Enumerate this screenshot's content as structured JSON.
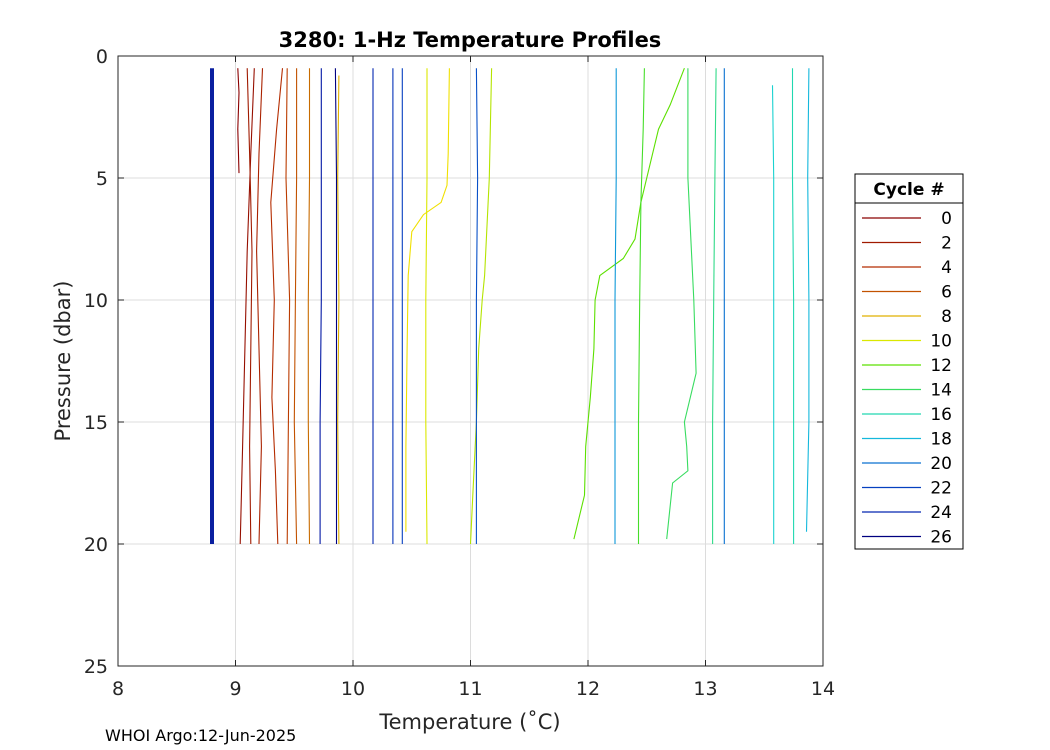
{
  "chart_data": {
    "type": "line",
    "title": "3280: 1-Hz Temperature Profiles",
    "xlabel": "Temperature (˚C)",
    "ylabel": "Pressure (dbar)",
    "xlim": [
      8,
      14
    ],
    "ylim": [
      0,
      25
    ],
    "y_reversed": true,
    "grid": true,
    "x_ticks": [
      8,
      9,
      10,
      11,
      12,
      13,
      14
    ],
    "y_ticks": [
      0,
      5,
      10,
      15,
      20,
      25
    ],
    "legend": {
      "title": "Cycle #",
      "placement": "outside-right"
    },
    "series": [
      {
        "name": "0",
        "color": "#8b0000",
        "points": [
          [
            9.02,
            0.5
          ],
          [
            9.03,
            1.5
          ],
          [
            9.02,
            3
          ],
          [
            9.03,
            4.8
          ]
        ]
      },
      {
        "name": "",
        "color": "#960f00",
        "points": [
          [
            9.16,
            0.5
          ],
          [
            9.13,
            4
          ],
          [
            9.1,
            8
          ],
          [
            9.08,
            12
          ],
          [
            9.06,
            16
          ],
          [
            9.05,
            18
          ],
          [
            9.04,
            20
          ]
        ]
      },
      {
        "name": "2",
        "color": "#a01a00",
        "points": [
          [
            9.1,
            0.5
          ],
          [
            9.12,
            4
          ],
          [
            9.14,
            8
          ],
          [
            9.13,
            12
          ],
          [
            9.12,
            16
          ],
          [
            9.13,
            20
          ]
        ]
      },
      {
        "name": "",
        "color": "#aa2200",
        "points": [
          [
            9.23,
            0.5
          ],
          [
            9.2,
            4
          ],
          [
            9.18,
            8
          ],
          [
            9.2,
            12
          ],
          [
            9.22,
            16
          ],
          [
            9.2,
            20
          ]
        ]
      },
      {
        "name": "4",
        "color": "#b42c00",
        "points": [
          [
            9.4,
            0.5
          ],
          [
            9.35,
            3
          ],
          [
            9.3,
            6
          ],
          [
            9.33,
            10
          ],
          [
            9.31,
            14
          ],
          [
            9.34,
            17
          ],
          [
            9.36,
            20
          ]
        ]
      },
      {
        "name": "",
        "color": "#bb3c00",
        "points": [
          [
            9.44,
            0.5
          ],
          [
            9.43,
            5
          ],
          [
            9.46,
            10
          ],
          [
            9.45,
            15
          ],
          [
            9.44,
            20
          ]
        ]
      },
      {
        "name": "6",
        "color": "#c25200",
        "points": [
          [
            9.52,
            0.5
          ],
          [
            9.52,
            5
          ],
          [
            9.51,
            10
          ],
          [
            9.5,
            15
          ],
          [
            9.52,
            20
          ]
        ]
      },
      {
        "name": "",
        "color": "#c86b00",
        "points": [
          [
            9.63,
            0.5
          ],
          [
            9.63,
            5
          ],
          [
            9.62,
            10
          ],
          [
            9.62,
            15
          ],
          [
            9.63,
            20
          ]
        ]
      },
      {
        "name": "8",
        "color": "#e0b000",
        "points": [
          [
            9.88,
            0.8
          ],
          [
            9.87,
            5
          ],
          [
            9.88,
            10
          ],
          [
            9.87,
            15
          ],
          [
            9.88,
            20
          ]
        ]
      },
      {
        "name": "",
        "color": "#f0e000",
        "points": [
          [
            10.82,
            0.5
          ],
          [
            10.81,
            4
          ],
          [
            10.8,
            5.3
          ],
          [
            10.75,
            6
          ],
          [
            10.6,
            6.5
          ],
          [
            10.5,
            7.2
          ],
          [
            10.47,
            9
          ],
          [
            10.46,
            12
          ],
          [
            10.45,
            16
          ],
          [
            10.45,
            19.5
          ]
        ]
      },
      {
        "name": "10",
        "color": "#dbe800",
        "points": [
          [
            10.63,
            0.5
          ],
          [
            10.63,
            5
          ],
          [
            10.62,
            10
          ],
          [
            10.62,
            15
          ],
          [
            10.63,
            20
          ]
        ]
      },
      {
        "name": "",
        "color": "#b4e400",
        "points": [
          [
            11.18,
            0.5
          ],
          [
            11.16,
            5
          ],
          [
            11.12,
            9
          ],
          [
            11.1,
            10
          ],
          [
            11.07,
            12
          ],
          [
            11.05,
            15
          ],
          [
            11.02,
            18
          ],
          [
            11.0,
            20
          ]
        ]
      },
      {
        "name": "12",
        "color": "#5ce000",
        "points": [
          [
            12.82,
            0.5
          ],
          [
            12.7,
            2
          ],
          [
            12.6,
            3
          ],
          [
            12.55,
            4
          ],
          [
            12.45,
            6
          ],
          [
            12.4,
            7.5
          ],
          [
            12.3,
            8.3
          ],
          [
            12.1,
            9
          ],
          [
            12.06,
            10
          ],
          [
            12.05,
            12
          ],
          [
            12.02,
            14
          ],
          [
            11.98,
            16
          ],
          [
            11.97,
            18
          ],
          [
            11.88,
            19.8
          ]
        ]
      },
      {
        "name": "",
        "color": "#46de2a",
        "points": [
          [
            12.48,
            0.5
          ],
          [
            12.47,
            3
          ],
          [
            12.45,
            6
          ],
          [
            12.44,
            10
          ],
          [
            12.43,
            15
          ],
          [
            12.43,
            20
          ]
        ]
      },
      {
        "name": "14",
        "color": "#38dc60",
        "points": [
          [
            12.85,
            0.5
          ],
          [
            12.85,
            5
          ],
          [
            12.9,
            10
          ],
          [
            12.92,
            13
          ],
          [
            12.82,
            15
          ],
          [
            12.84,
            16
          ],
          [
            12.85,
            17
          ],
          [
            12.72,
            17.5
          ],
          [
            12.67,
            19.8
          ]
        ]
      },
      {
        "name": "",
        "color": "#30da88",
        "points": [
          [
            13.09,
            0.5
          ],
          [
            13.08,
            5
          ],
          [
            13.07,
            10
          ],
          [
            13.06,
            15
          ],
          [
            13.06,
            20
          ]
        ]
      },
      {
        "name": "16",
        "color": "#20d8b0",
        "points": [
          [
            13.74,
            0.5
          ],
          [
            13.74,
            5
          ],
          [
            13.75,
            10
          ],
          [
            13.75,
            15
          ],
          [
            13.75,
            20
          ]
        ]
      },
      {
        "name": "",
        "color": "#1ad2d0",
        "points": [
          [
            13.57,
            1.2
          ],
          [
            13.58,
            5
          ],
          [
            13.58,
            10
          ],
          [
            13.58,
            15
          ],
          [
            13.58,
            20
          ]
        ]
      },
      {
        "name": "18",
        "color": "#14b8dc",
        "points": [
          [
            13.88,
            0.5
          ],
          [
            13.87,
            5
          ],
          [
            13.88,
            10
          ],
          [
            13.88,
            15
          ],
          [
            13.86,
            19.5
          ]
        ]
      },
      {
        "name": "",
        "color": "#0e98d8",
        "points": [
          [
            12.24,
            0.5
          ],
          [
            12.24,
            5
          ],
          [
            12.23,
            10
          ],
          [
            12.23,
            15
          ],
          [
            12.23,
            20
          ]
        ]
      },
      {
        "name": "20",
        "color": "#0a70d0",
        "points": [
          [
            13.16,
            0.5
          ],
          [
            13.16,
            5
          ],
          [
            13.16,
            10
          ],
          [
            13.16,
            15
          ],
          [
            13.16,
            20
          ]
        ]
      },
      {
        "name": "",
        "color": "#0850c8",
        "points": [
          [
            11.05,
            0.5
          ],
          [
            11.06,
            5
          ],
          [
            11.05,
            10
          ],
          [
            11.05,
            15
          ],
          [
            11.05,
            20
          ]
        ]
      },
      {
        "name": "22",
        "color": "#0640c0",
        "points": [
          [
            10.42,
            0.5
          ],
          [
            10.42,
            5
          ],
          [
            10.42,
            10
          ],
          [
            10.42,
            15
          ],
          [
            10.42,
            20
          ]
        ]
      },
      {
        "name": "",
        "color": "#0532b8",
        "points": [
          [
            10.34,
            0.5
          ],
          [
            10.34,
            5
          ],
          [
            10.34,
            10
          ],
          [
            10.34,
            15
          ],
          [
            10.34,
            20
          ]
        ]
      },
      {
        "name": "24",
        "color": "#0426b0",
        "points": [
          [
            10.17,
            0.5
          ],
          [
            10.17,
            5
          ],
          [
            10.17,
            10
          ],
          [
            10.17,
            15
          ],
          [
            10.17,
            20
          ]
        ]
      },
      {
        "name": "",
        "color": "#0318a4",
        "points": [
          [
            9.73,
            0.5
          ],
          [
            9.73,
            5
          ],
          [
            9.73,
            10
          ],
          [
            9.72,
            15
          ],
          [
            9.72,
            20
          ]
        ]
      },
      {
        "name": "26",
        "color": "#000080",
        "points": [
          [
            9.85,
            0.5
          ],
          [
            9.86,
            5
          ],
          [
            9.86,
            10
          ],
          [
            9.86,
            15
          ],
          [
            9.86,
            20
          ]
        ]
      },
      {
        "name": "",
        "color": "#0a1fa0",
        "thick": true,
        "points": [
          [
            8.8,
            0.5
          ],
          [
            8.8,
            5
          ],
          [
            8.8,
            10
          ],
          [
            8.8,
            15
          ],
          [
            8.8,
            20
          ]
        ]
      }
    ]
  },
  "footer": "WHOI Argo:12-Jun-2025"
}
